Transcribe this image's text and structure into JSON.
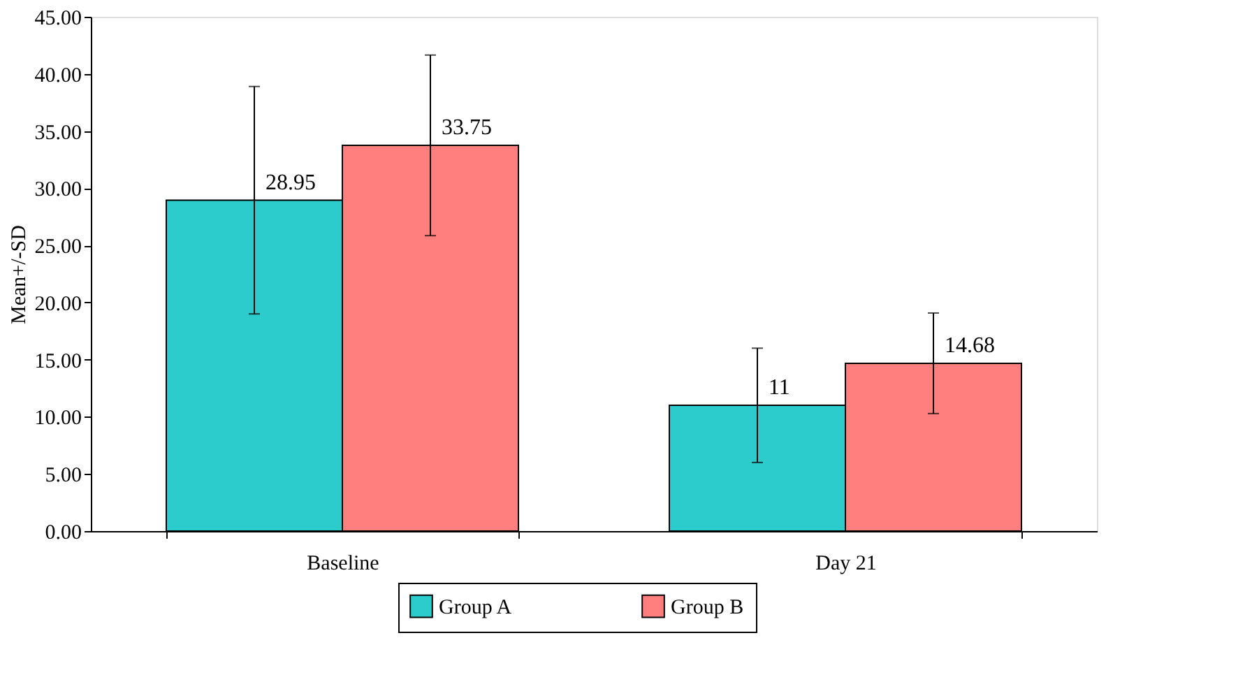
{
  "chart_data": {
    "type": "bar",
    "ylabel": "Mean+/-SD",
    "categories": [
      "Baseline",
      "Day 21"
    ],
    "series": [
      {
        "name": "Group A",
        "color": "#2ccccc",
        "values": [
          28.95,
          11
        ],
        "errors": [
          9.95,
          5.0
        ]
      },
      {
        "name": "Group B",
        "color": "#ff7f7f",
        "values": [
          33.75,
          14.68
        ],
        "errors": [
          7.9,
          4.4
        ]
      }
    ],
    "data_labels": true,
    "ylim": [
      0,
      45
    ],
    "yticks": [
      {
        "value": 0,
        "label": "0.00"
      },
      {
        "value": 5,
        "label": "5.00"
      },
      {
        "value": 10,
        "label": "10.00"
      },
      {
        "value": 15,
        "label": "15.00"
      },
      {
        "value": 20,
        "label": "20.00"
      },
      {
        "value": 25,
        "label": "25.00"
      },
      {
        "value": 30,
        "label": "30.00"
      },
      {
        "value": 35,
        "label": "35.00"
      },
      {
        "value": 40,
        "label": "40.00"
      },
      {
        "value": 45,
        "label": "45.00"
      }
    ],
    "grid": false,
    "legend": "bottom"
  }
}
